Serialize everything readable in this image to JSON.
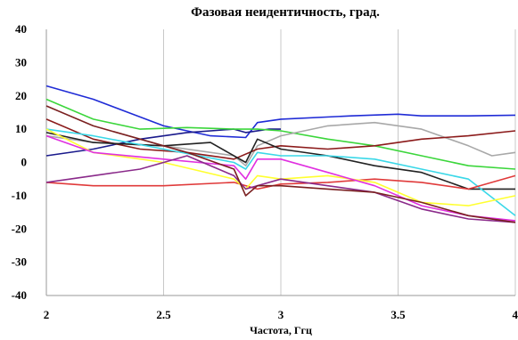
{
  "chart_data": {
    "type": "line",
    "title": "Фазовая неидентичность, град.",
    "xlabel": "Частота, Ггц",
    "ylabel": "",
    "xlim": [
      2,
      4
    ],
    "ylim": [
      -40,
      40
    ],
    "xticks": [
      "2",
      "2.5",
      "3",
      "3.5",
      "4"
    ],
    "yticks": [
      "40",
      "30",
      "20",
      "10",
      "0",
      "-10",
      "-20",
      "-30",
      "-40"
    ],
    "grid": "vertical",
    "legend": "none",
    "series": [
      {
        "color": "#1f2bd6",
        "x": [
          2.0,
          2.2,
          2.5,
          2.7,
          2.85,
          2.9,
          3.0,
          3.3,
          3.5,
          3.6,
          3.8,
          4.0
        ],
        "y": [
          23,
          19,
          11,
          8,
          7.5,
          12,
          13,
          14,
          14.5,
          14,
          14,
          14.2
        ]
      },
      {
        "color": "#1a1a8c",
        "x": [
          2.0,
          2.2,
          2.4,
          2.6,
          2.8,
          2.85,
          2.95,
          3.0
        ],
        "y": [
          2,
          4,
          7,
          9,
          10,
          9,
          10,
          10
        ]
      },
      {
        "color": "#3bd63b",
        "x": [
          2.0,
          2.2,
          2.4,
          2.6,
          2.8,
          2.9,
          3.0,
          3.2,
          3.4,
          3.6,
          3.8,
          4.0
        ],
        "y": [
          19,
          13,
          10,
          10.5,
          10,
          10,
          9.5,
          7,
          5,
          2,
          -1,
          -2
        ]
      },
      {
        "color": "#a8a8a8",
        "x": [
          2.0,
          2.2,
          2.5,
          2.8,
          2.85,
          2.9,
          3.0,
          3.2,
          3.4,
          3.6,
          3.8,
          3.9,
          4.0
        ],
        "y": [
          8,
          6,
          5,
          2,
          -1,
          5,
          8,
          11,
          12,
          10,
          5,
          2,
          3
        ]
      },
      {
        "color": "#8b1a1a",
        "x": [
          2.0,
          2.2,
          2.4,
          2.6,
          2.8,
          2.9,
          3.0,
          3.2,
          3.4,
          3.6,
          3.8,
          4.0
        ],
        "y": [
          13,
          7,
          4,
          3,
          1,
          4,
          5,
          4,
          5,
          7,
          8,
          9.5
        ]
      },
      {
        "color": "#222222",
        "x": [
          2.0,
          2.2,
          2.5,
          2.7,
          2.85,
          2.9,
          3.0,
          3.2,
          3.4,
          3.6,
          3.8,
          4.0
        ],
        "y": [
          9,
          6,
          5,
          6,
          0,
          7,
          4,
          2,
          -1,
          -3,
          -8,
          -8
        ]
      },
      {
        "color": "#3ad8e8",
        "x": [
          2.0,
          2.2,
          2.5,
          2.8,
          2.85,
          2.9,
          3.0,
          3.2,
          3.4,
          3.6,
          3.8,
          4.0
        ],
        "y": [
          10,
          8,
          4,
          0,
          -2,
          3,
          2,
          2,
          1,
          -2,
          -5,
          -16
        ]
      },
      {
        "color": "#e03a3a",
        "x": [
          2.0,
          2.2,
          2.5,
          2.8,
          2.9,
          3.0,
          3.2,
          3.4,
          3.6,
          3.8,
          4.0
        ],
        "y": [
          -6,
          -7,
          -7,
          -6,
          -8,
          -6.5,
          -6,
          -5,
          -6,
          -8,
          -4
        ]
      },
      {
        "color": "#ffff30",
        "x": [
          2.0,
          2.2,
          2.5,
          2.8,
          2.85,
          2.9,
          3.0,
          3.2,
          3.4,
          3.6,
          3.8,
          4.0
        ],
        "y": [
          10,
          3,
          0,
          -5,
          -8,
          -4,
          -5,
          -4,
          -6,
          -12,
          -13,
          -10
        ]
      },
      {
        "color": "#e030e0",
        "x": [
          2.0,
          2.2,
          2.5,
          2.8,
          2.85,
          2.9,
          3.0,
          3.2,
          3.4,
          3.6,
          3.8,
          4.0
        ],
        "y": [
          8,
          3,
          1,
          -1,
          -5,
          1,
          1,
          -3,
          -7,
          -13,
          -16,
          -17.5
        ]
      },
      {
        "color": "#8a2a8a",
        "x": [
          2.0,
          2.2,
          2.4,
          2.6,
          2.8,
          2.85,
          3.0,
          3.2,
          3.4,
          3.6,
          3.8,
          4.0
        ],
        "y": [
          -6,
          -4,
          -2,
          2,
          -4,
          -8,
          -5,
          -7,
          -9,
          -14,
          -17,
          -18
        ]
      },
      {
        "color": "#7a2020",
        "x": [
          2.0,
          2.2,
          2.4,
          2.6,
          2.8,
          2.85,
          2.9,
          3.0,
          3.2,
          3.4,
          3.6,
          3.8,
          4.0
        ],
        "y": [
          17,
          11,
          7,
          3,
          -2,
          -10,
          -7,
          -7,
          -8,
          -9,
          -12,
          -16,
          -18
        ]
      }
    ]
  }
}
